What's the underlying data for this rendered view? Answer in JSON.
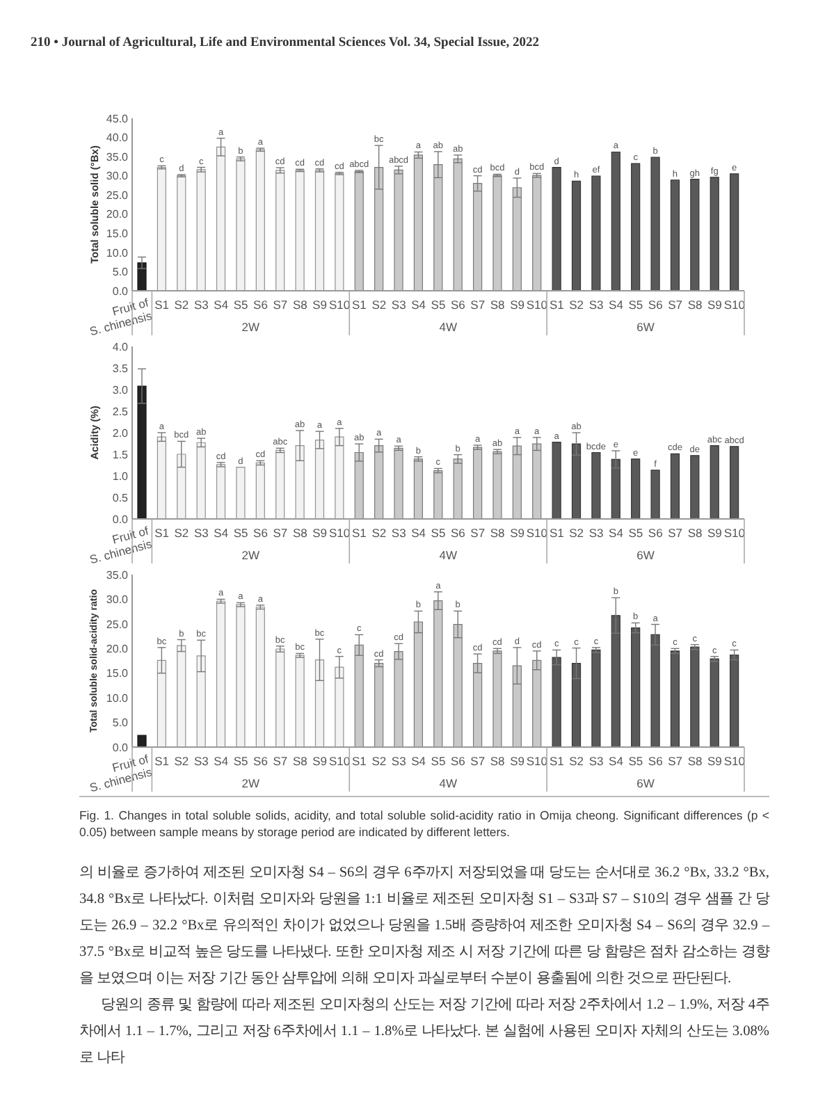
{
  "chart_data": [
    {
      "type": "bar",
      "ylabel": "Total soluble solid (°Bx)",
      "annotations": [
        "210 • Journal of Agricultural, Life and Environmental Sciences Vol. 34, Special Issue, 2022"
      ],
      "categories": [
        "Fruit of S. chinensis",
        "S1",
        "S2",
        "S3",
        "S4",
        "S5",
        "S6",
        "S7",
        "S8",
        "S9",
        "S10",
        "S1",
        "S2",
        "S3",
        "S4",
        "S5",
        "S6",
        "S7",
        "S8",
        "S9",
        "S10",
        "S1",
        "S2",
        "S3",
        "S4",
        "S5",
        "S6",
        "S7",
        "S8",
        "S9",
        "S10"
      ],
      "ylim": [
        0,
        45
      ],
      "yticks": [
        {
          "value": 0,
          "label": "0.0"
        },
        {
          "value": 5,
          "label": "5.0"
        },
        {
          "value": 10,
          "label": "10.0"
        },
        {
          "value": 15,
          "label": "15.0"
        },
        {
          "value": 20,
          "label": "20.0"
        },
        {
          "value": 25,
          "label": "25.0"
        },
        {
          "value": 30,
          "label": "30.0"
        },
        {
          "value": 35,
          "label": "35.0"
        },
        {
          "value": 40,
          "label": "40.0"
        },
        {
          "value": 45,
          "label": "45.0"
        }
      ],
      "series": [
        {
          "color": "#222222",
          "values": [
            7.3,
            null,
            null,
            null,
            null,
            null,
            null,
            null,
            null,
            null,
            null,
            null,
            null,
            null,
            null,
            null,
            null,
            null,
            null,
            null,
            null,
            null,
            null,
            null,
            null,
            null,
            null,
            null,
            null,
            null,
            null
          ],
          "errors": [
            1.5,
            null,
            null,
            null,
            null,
            null,
            null,
            null,
            null,
            null,
            null,
            null,
            null,
            null,
            null,
            null,
            null,
            null,
            null,
            null,
            null,
            null,
            null,
            null,
            null,
            null,
            null,
            null,
            null,
            null,
            null
          ]
        },
        {
          "name": "2W",
          "color": "#f2f2f2",
          "values": [
            null,
            32.2,
            30,
            31.6,
            37.5,
            34.4,
            36.8,
            31.4,
            31.4,
            31.4,
            30.6,
            null,
            null,
            null,
            null,
            null,
            null,
            null,
            null,
            null,
            null,
            null,
            null,
            null,
            null,
            null,
            null,
            null,
            null,
            null,
            null
          ],
          "errors": [
            null,
            0.4,
            0.3,
            0.6,
            2.3,
            0.5,
            0.4,
            0.7,
            0.3,
            0.4,
            0.3,
            null,
            null,
            null,
            null,
            null,
            null,
            null,
            null,
            null,
            null,
            null,
            null,
            null,
            null,
            null,
            null,
            null,
            null,
            null,
            null
          ],
          "value_labels": [
            null,
            "c",
            "d",
            "c",
            "a",
            "b",
            "a",
            "cd",
            "cd",
            "cd",
            "cd",
            null,
            null,
            null,
            null,
            null,
            null,
            null,
            null,
            null,
            null,
            null,
            null,
            null,
            null,
            null,
            null,
            null,
            null,
            null,
            null
          ]
        },
        {
          "name": "4W",
          "color": "#c9c9c9",
          "values": [
            null,
            null,
            null,
            null,
            null,
            null,
            null,
            null,
            null,
            null,
            null,
            31.1,
            32.2,
            31.5,
            35.4,
            32.9,
            34.4,
            28,
            30.1,
            26.9,
            30.1,
            null,
            null,
            null,
            null,
            null,
            null,
            null,
            null,
            null,
            null
          ],
          "errors": [
            null,
            null,
            null,
            null,
            null,
            null,
            null,
            null,
            null,
            null,
            null,
            0.3,
            5.7,
            1,
            0.8,
            3.4,
            1,
            2,
            0.3,
            2.5,
            0.5,
            null,
            null,
            null,
            null,
            null,
            null,
            null,
            null,
            null,
            null
          ],
          "value_labels": [
            null,
            null,
            null,
            null,
            null,
            null,
            null,
            null,
            null,
            null,
            null,
            "abcd",
            "bc",
            "abcd",
            "a",
            "ab",
            "ab",
            "cd",
            "bcd",
            "d",
            "bcd",
            null,
            null,
            null,
            null,
            null,
            null,
            null,
            null,
            null,
            null
          ]
        },
        {
          "name": "6W",
          "color": "#595959",
          "values": [
            null,
            null,
            null,
            null,
            null,
            null,
            null,
            null,
            null,
            null,
            null,
            null,
            null,
            null,
            null,
            null,
            null,
            null,
            null,
            null,
            null,
            32.2,
            28.6,
            29.9,
            36.2,
            33.2,
            34.8,
            28.9,
            29.1,
            29.6,
            30.5
          ],
          "value_labels": [
            null,
            null,
            null,
            null,
            null,
            null,
            null,
            null,
            null,
            null,
            null,
            null,
            null,
            null,
            null,
            null,
            null,
            null,
            null,
            null,
            null,
            "d",
            "h",
            "ef",
            "a",
            "c",
            "b",
            "h",
            "gh",
            "fg",
            "e"
          ]
        }
      ]
    },
    {
      "type": "bar",
      "ylabel": "Acidity (%)",
      "categories": [
        "Fruit of S. chinensis",
        "S1",
        "S2",
        "S3",
        "S4",
        "S5",
        "S6",
        "S7",
        "S8",
        "S9",
        "S10",
        "S1",
        "S2",
        "S3",
        "S4",
        "S5",
        "S6",
        "S7",
        "S8",
        "S9",
        "S10",
        "S1",
        "S2",
        "S3",
        "S4",
        "S5",
        "S6",
        "S7",
        "S8",
        "S9",
        "S10"
      ],
      "ylim": [
        0,
        4
      ],
      "yticks": [
        {
          "value": 0,
          "label": "0.0"
        },
        {
          "value": 0.5,
          "label": "0.5"
        },
        {
          "value": 1,
          "label": "1.0"
        },
        {
          "value": 1.5,
          "label": "1.5"
        },
        {
          "value": 2,
          "label": "2.0"
        },
        {
          "value": 2.5,
          "label": "2.5"
        },
        {
          "value": 3,
          "label": "3.0"
        },
        {
          "value": 3.5,
          "label": "3.5"
        },
        {
          "value": 4,
          "label": "4.0"
        }
      ],
      "series": [
        {
          "color": "#222222",
          "values": [
            3.08,
            null,
            null,
            null,
            null,
            null,
            null,
            null,
            null,
            null,
            null,
            null,
            null,
            null,
            null,
            null,
            null,
            null,
            null,
            null,
            null,
            null,
            null,
            null,
            null,
            null,
            null,
            null,
            null,
            null,
            null
          ],
          "errors": [
            0.4,
            null,
            null,
            null,
            null,
            null,
            null,
            null,
            null,
            null,
            null,
            null,
            null,
            null,
            null,
            null,
            null,
            null,
            null,
            null,
            null,
            null,
            null,
            null,
            null,
            null,
            null,
            null,
            null,
            null,
            null
          ]
        },
        {
          "name": "2W",
          "color": "#f2f2f2",
          "values": [
            null,
            1.9,
            1.5,
            1.77,
            1.26,
            1.2,
            1.3,
            1.59,
            1.7,
            1.83,
            1.9,
            null,
            null,
            null,
            null,
            null,
            null,
            null,
            null,
            null,
            null,
            null,
            null,
            null,
            null,
            null,
            null,
            null,
            null,
            null,
            null
          ],
          "errors": [
            null,
            0.1,
            0.3,
            0.1,
            0.05,
            null,
            0.05,
            0.05,
            0.35,
            0.2,
            0.2,
            null,
            null,
            null,
            null,
            null,
            null,
            null,
            null,
            null,
            null,
            null,
            null,
            null,
            null,
            null,
            null,
            null,
            null,
            null,
            null
          ],
          "value_labels": [
            null,
            "a",
            "bcd",
            "ab",
            "cd",
            "d",
            "cd",
            "abc",
            "ab",
            "a",
            "a",
            null,
            null,
            null,
            null,
            null,
            null,
            null,
            null,
            null,
            null,
            null,
            null,
            null,
            null,
            null,
            null,
            null,
            null,
            null,
            null
          ]
        },
        {
          "name": "4W",
          "color": "#c9c9c9",
          "values": [
            null,
            null,
            null,
            null,
            null,
            null,
            null,
            null,
            null,
            null,
            null,
            1.54,
            1.7,
            1.64,
            1.39,
            1.12,
            1.39,
            1.66,
            1.56,
            1.69,
            1.74,
            null,
            null,
            null,
            null,
            null,
            null,
            null,
            null,
            null,
            null
          ],
          "errors": [
            null,
            null,
            null,
            null,
            null,
            null,
            null,
            null,
            null,
            null,
            null,
            0.2,
            0.15,
            0.05,
            0.05,
            0.05,
            0.1,
            0.05,
            0.05,
            0.2,
            0.15,
            null,
            null,
            null,
            null,
            null,
            null,
            null,
            null,
            null,
            null
          ],
          "value_labels": [
            null,
            null,
            null,
            null,
            null,
            null,
            null,
            null,
            null,
            null,
            null,
            "ab",
            "a",
            "a",
            "b",
            "c",
            "b",
            "a",
            "ab",
            "a",
            "a",
            null,
            null,
            null,
            null,
            null,
            null,
            null,
            null,
            null,
            null
          ]
        },
        {
          "name": "6W",
          "color": "#595959",
          "values": [
            null,
            null,
            null,
            null,
            null,
            null,
            null,
            null,
            null,
            null,
            null,
            null,
            null,
            null,
            null,
            null,
            null,
            null,
            null,
            null,
            null,
            1.78,
            1.74,
            1.54,
            1.38,
            1.39,
            1.13,
            1.51,
            1.47,
            1.7,
            1.68
          ],
          "errors": [
            null,
            null,
            null,
            null,
            null,
            null,
            null,
            null,
            null,
            null,
            null,
            null,
            null,
            null,
            null,
            null,
            null,
            null,
            null,
            null,
            null,
            null,
            0.26,
            null,
            0.2,
            null,
            null,
            null,
            null,
            null,
            null
          ],
          "value_labels": [
            null,
            null,
            null,
            null,
            null,
            null,
            null,
            null,
            null,
            null,
            null,
            null,
            null,
            null,
            null,
            null,
            null,
            null,
            null,
            null,
            null,
            "a",
            "ab",
            "bcde",
            "e",
            "e",
            "f",
            "cde",
            "de",
            "abc",
            "abcd"
          ]
        }
      ]
    },
    {
      "type": "bar",
      "ylabel": "Total soluble solid-acidity ratio",
      "annotations": [
        "Fig. 1. Changes in total soluble solids, acidity, and total soluble solid-acidity ratio in Omija cheong. Significant differences (p < 0.05) between sample means by storage period are indicated by different letters.",
        "의 비율로 증가하여 제조된 오미자청 S4 – S6의 경우 6주까지 저장되었을 때 당도는 순서대로 36.2 °Bx, 33.2 °Bx, 34.8 °Bx로 나타났다. 이처럼 오미자와 당원을 1:1 비율로 제조된 오미자청 S1 – S3과 S7 – S10의 경우 샘플 간 당도는 26.9 – 32.2 °Bx로 유의적인 차이가 없었으나 당원을 1.5배 증량하여 제조한 오미자청 S4 – S6의 경우 32.9 – 37.5 °Bx로 비교적 높은 당도를 나타냈다. 또한 오미자청 제조 시 저장 기간에 따른 당 함량은 점차 감소하는 경향을 보였으며 이는 저장 기간 동안 삼투압에 의해 오미자 과실로부터 수분이 용출됨에 의한 것으로 판단된다.",
        "당원의 종류 및 함량에 따라 제조된 오미자청의 산도는 저장 기간에 따라 저장 2주차에서 1.2 – 1.9%, 저장 4주차에서 1.1 – 1.7%, 그리고 저장 6주차에서 1.1 – 1.8%로 나타났다. 본 실험에 사용된 오미자 자체의 산도는 3.08%로 나타"
      ],
      "categories": [
        "Fruit of S. chinensis",
        "S1",
        "S2",
        "S3",
        "S4",
        "S5",
        "S6",
        "S7",
        "S8",
        "S9",
        "S10",
        "S1",
        "S2",
        "S3",
        "S4",
        "S5",
        "S6",
        "S7",
        "S8",
        "S9",
        "S10",
        "S1",
        "S2",
        "S3",
        "S4",
        "S5",
        "S6",
        "S7",
        "S8",
        "S9",
        "S10"
      ],
      "ylim": [
        0,
        35
      ],
      "yticks": [
        {
          "value": 0,
          "label": "0.0"
        },
        {
          "value": 5,
          "label": "5.0"
        },
        {
          "value": 10,
          "label": "10.0"
        },
        {
          "value": 15,
          "label": "15.0"
        },
        {
          "value": 20,
          "label": "20.0"
        },
        {
          "value": 25,
          "label": "25.0"
        },
        {
          "value": 30,
          "label": "30.0"
        },
        {
          "value": 35,
          "label": "35.0"
        }
      ],
      "series": [
        {
          "color": "#222222",
          "values": [
            2.4,
            null,
            null,
            null,
            null,
            null,
            null,
            null,
            null,
            null,
            null,
            null,
            null,
            null,
            null,
            null,
            null,
            null,
            null,
            null,
            null,
            null,
            null,
            null,
            null,
            null,
            null,
            null,
            null,
            null,
            null
          ]
        },
        {
          "name": "2W",
          "color": "#f2f2f2",
          "values": [
            null,
            17.6,
            20.6,
            18.5,
            29.6,
            28.9,
            28.4,
            19.9,
            18.6,
            17.7,
            16.2,
            null,
            null,
            null,
            null,
            null,
            null,
            null,
            null,
            null,
            null,
            null,
            null,
            null,
            null,
            null,
            null,
            null,
            null,
            null,
            null
          ],
          "errors": [
            null,
            2.6,
            1.2,
            3.2,
            0.4,
            0.4,
            0.4,
            0.6,
            0.4,
            4.2,
            2.2,
            null,
            null,
            null,
            null,
            null,
            null,
            null,
            null,
            null,
            null,
            null,
            null,
            null,
            null,
            null,
            null,
            null,
            null,
            null,
            null
          ],
          "value_labels": [
            null,
            "bc",
            "b",
            "bc",
            "a",
            "a",
            "a",
            "bc",
            "bc",
            "bc",
            "c",
            null,
            null,
            null,
            null,
            null,
            null,
            null,
            null,
            null,
            null,
            null,
            null,
            null,
            null,
            null,
            null,
            null,
            null,
            null,
            null
          ]
        },
        {
          "name": "4W",
          "color": "#c9c9c9",
          "values": [
            null,
            null,
            null,
            null,
            null,
            null,
            null,
            null,
            null,
            null,
            null,
            20.7,
            17,
            19.4,
            25.4,
            29.7,
            24.9,
            17,
            19.5,
            16.5,
            17.6,
            null,
            null,
            null,
            null,
            null,
            null,
            null,
            null,
            null,
            null
          ],
          "errors": [
            null,
            null,
            null,
            null,
            null,
            null,
            null,
            null,
            null,
            null,
            null,
            2.1,
            0.7,
            1.6,
            2.2,
            1.8,
            2.7,
            1.9,
            0.5,
            3.7,
            1.9,
            null,
            null,
            null,
            null,
            null,
            null,
            null,
            null,
            null,
            null
          ],
          "value_labels": [
            null,
            null,
            null,
            null,
            null,
            null,
            null,
            null,
            null,
            null,
            null,
            "c",
            "cd",
            "cd",
            "b",
            "a",
            "b",
            "cd",
            "cd",
            "d",
            "cd",
            null,
            null,
            null,
            null,
            null,
            null,
            null,
            null,
            null,
            null
          ]
        },
        {
          "name": "6W",
          "color": "#595959",
          "values": [
            null,
            null,
            null,
            null,
            null,
            null,
            null,
            null,
            null,
            null,
            null,
            null,
            null,
            null,
            null,
            null,
            null,
            null,
            null,
            null,
            null,
            18.2,
            17,
            19.7,
            26.7,
            24.2,
            22.8,
            19.5,
            20.3,
            17.9,
            18.7
          ],
          "errors": [
            null,
            null,
            null,
            null,
            null,
            null,
            null,
            null,
            null,
            null,
            null,
            null,
            null,
            null,
            null,
            null,
            null,
            null,
            null,
            null,
            null,
            1.5,
            3.1,
            0.5,
            3.6,
            1,
            2.1,
            0.5,
            0.5,
            0.5,
            1
          ],
          "value_labels": [
            null,
            null,
            null,
            null,
            null,
            null,
            null,
            null,
            null,
            null,
            null,
            null,
            null,
            null,
            null,
            null,
            null,
            null,
            null,
            null,
            null,
            "c",
            "c",
            "c",
            "b",
            "b",
            "a",
            "c",
            "c",
            "c",
            "c"
          ]
        }
      ]
    }
  ]
}
